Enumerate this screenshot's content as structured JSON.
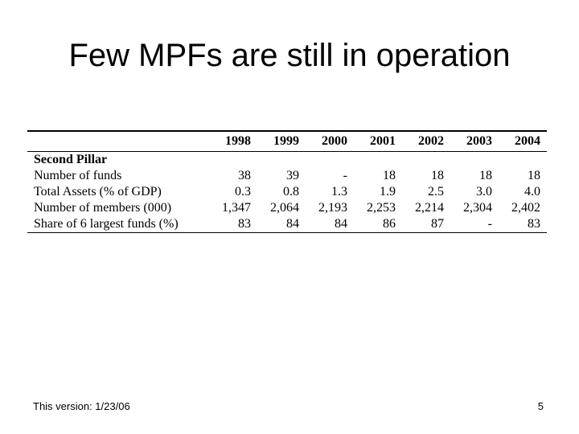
{
  "title": "Few MPFs are still in operation",
  "table": {
    "header": [
      "",
      "1998",
      "1999",
      "2000",
      "2001",
      "2002",
      "2003",
      "2004"
    ],
    "section": "Second Pillar",
    "rows": [
      {
        "label": "Number of funds",
        "values": [
          "38",
          "39",
          "-",
          "18",
          "18",
          "18",
          "18"
        ]
      },
      {
        "label": "Total Assets (% of GDP)",
        "values": [
          "0.3",
          "0.8",
          "1.3",
          "1.9",
          "2.5",
          "3.0",
          "4.0"
        ]
      },
      {
        "label": "Number of members (000)",
        "values": [
          "1,347",
          "2,064",
          "2,193",
          "2,253",
          "2,214",
          "2,304",
          "2,402"
        ]
      },
      {
        "label": "Share of 6 largest funds (%)",
        "values": [
          "83",
          "84",
          "84",
          "86",
          "87",
          "-",
          "83"
        ]
      }
    ]
  },
  "footer": {
    "version": "This version: 1/23/06",
    "page_number": "5"
  }
}
